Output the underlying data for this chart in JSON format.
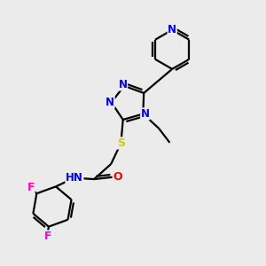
{
  "background_color": "#ebebeb",
  "atom_colors": {
    "N": "#0000ff",
    "O": "#ff0000",
    "S": "#cccc00",
    "F": "#ff00cc",
    "C": "#000000",
    "H": "#000000"
  },
  "bond_color": "#000000",
  "bond_width": 1.6,
  "font_size": 8.5,
  "fig_size": [
    3.0,
    3.0
  ],
  "dpi": 100
}
